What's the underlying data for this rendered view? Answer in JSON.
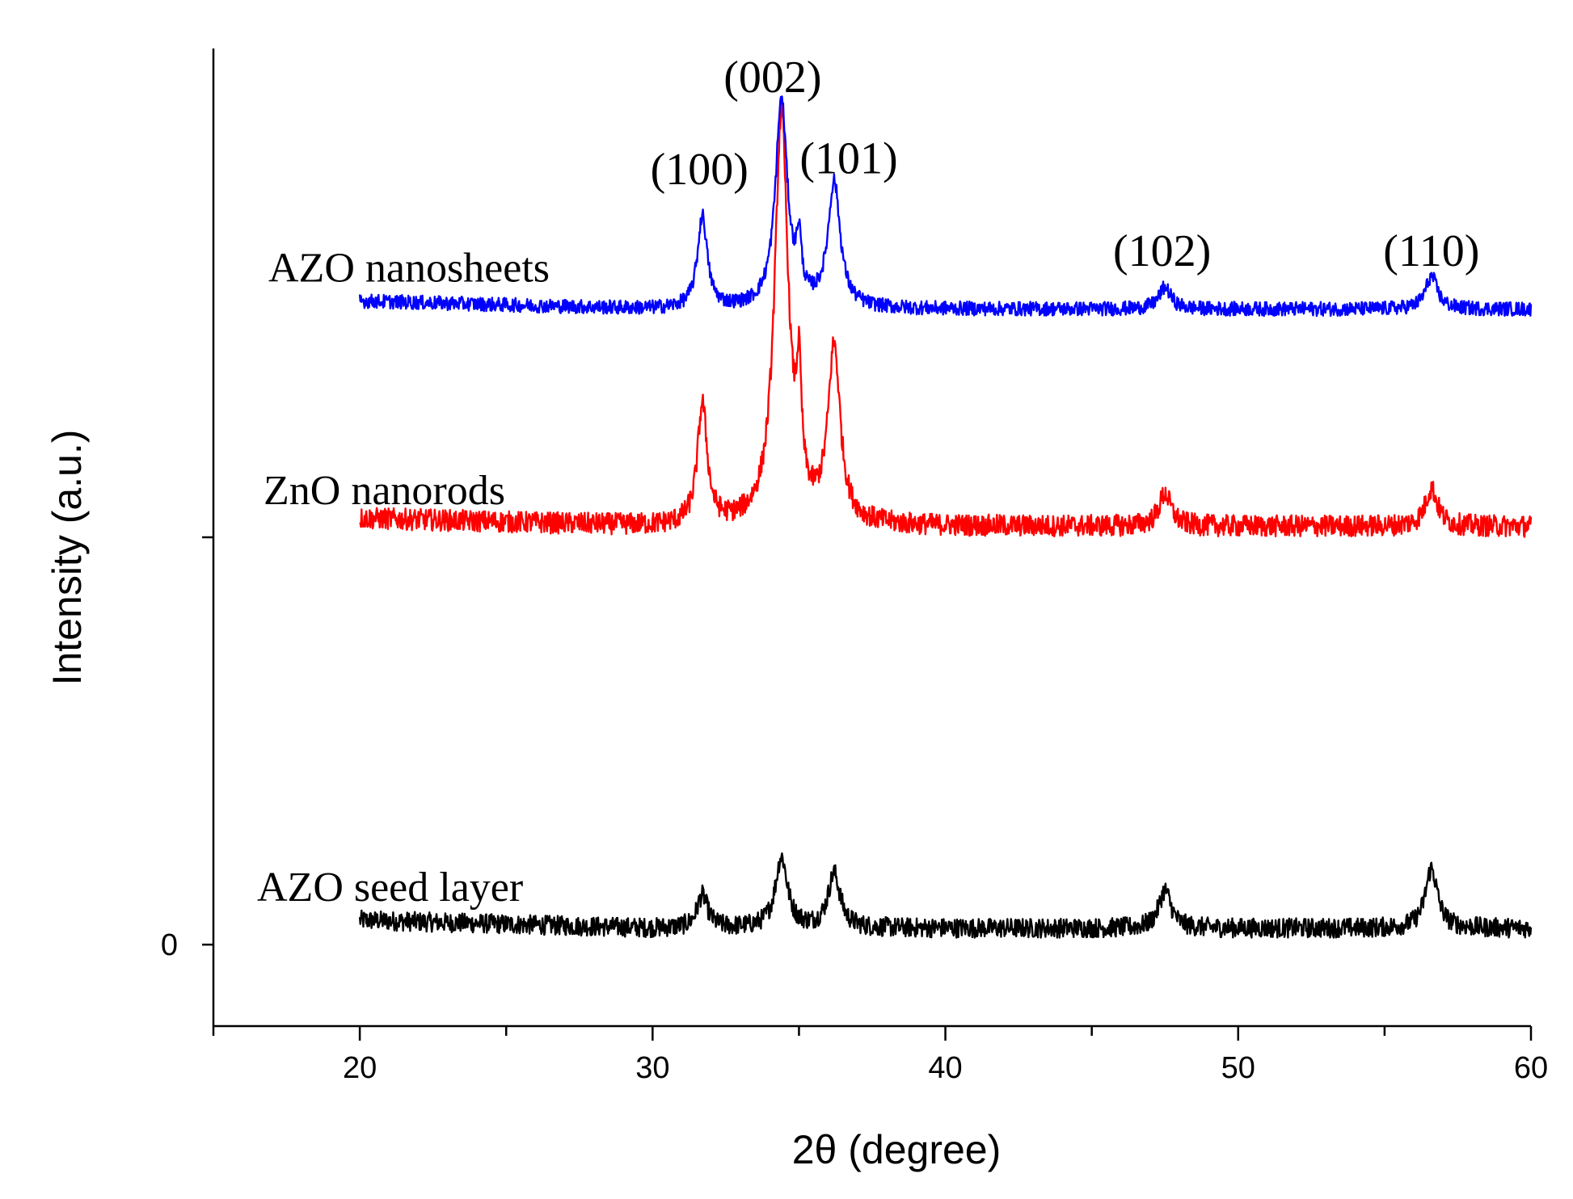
{
  "chart_data": {
    "type": "line",
    "title": "",
    "xlabel": "2θ (degree)",
    "ylabel": "Intensity (a.u.)",
    "xlim": [
      15,
      60
    ],
    "ylim": [
      -0.15,
      1.65
    ],
    "x_ticks": [
      20,
      30,
      40,
      50,
      60
    ],
    "x_tick_labels": [
      "20",
      "30",
      "40",
      "50",
      "60"
    ],
    "y_ticks": [
      0
    ],
    "y_tick_labels": [
      "0"
    ],
    "series": [
      {
        "name": "AZO seed layer",
        "color": "#000000",
        "baseline": 0.03,
        "noise": 0.018,
        "peaks": [
          {
            "x": 31.7,
            "height": 0.06,
            "width": 0.22
          },
          {
            "x": 34.4,
            "height": 0.13,
            "width": 0.25
          },
          {
            "x": 36.2,
            "height": 0.1,
            "width": 0.25
          },
          {
            "x": 47.5,
            "height": 0.07,
            "width": 0.25
          },
          {
            "x": 56.6,
            "height": 0.11,
            "width": 0.25
          }
        ]
      },
      {
        "name": "ZnO nanorods",
        "color": "#ff0000",
        "baseline": 0.77,
        "noise": 0.02,
        "peaks": [
          {
            "x": 31.7,
            "height": 0.22,
            "width": 0.2
          },
          {
            "x": 34.4,
            "height": 0.75,
            "width": 0.28
          },
          {
            "x": 35.0,
            "height": 0.2,
            "width": 0.1
          },
          {
            "x": 36.2,
            "height": 0.32,
            "width": 0.25
          },
          {
            "x": 47.5,
            "height": 0.06,
            "width": 0.25
          },
          {
            "x": 56.6,
            "height": 0.07,
            "width": 0.25
          }
        ]
      },
      {
        "name": "AZO nanosheets",
        "color": "#0000ff",
        "baseline": 1.17,
        "noise": 0.013,
        "peaks": [
          {
            "x": 31.7,
            "height": 0.17,
            "width": 0.2
          },
          {
            "x": 34.4,
            "height": 0.38,
            "width": 0.25
          },
          {
            "x": 35.0,
            "height": 0.1,
            "width": 0.1
          },
          {
            "x": 36.2,
            "height": 0.23,
            "width": 0.25
          },
          {
            "x": 47.5,
            "height": 0.04,
            "width": 0.25
          },
          {
            "x": 56.6,
            "height": 0.06,
            "width": 0.25
          }
        ]
      }
    ],
    "annotations": [
      {
        "text": "(100)",
        "x": 31.6,
        "y": 1.4
      },
      {
        "text": "(002)",
        "x": 34.1,
        "y": 1.57
      },
      {
        "text": "(101)",
        "x": 36.7,
        "y": 1.42
      },
      {
        "text": "(102)",
        "x": 47.4,
        "y": 1.25
      },
      {
        "text": "(110)",
        "x": 56.6,
        "y": 1.25
      }
    ],
    "series_labels": [
      {
        "text": "AZO nanosheets",
        "series": "AZO nanosheets"
      },
      {
        "text": "ZnO nanorods",
        "series": "ZnO nanorods"
      },
      {
        "text": "AZO seed layer",
        "series": "AZO seed layer"
      }
    ]
  }
}
